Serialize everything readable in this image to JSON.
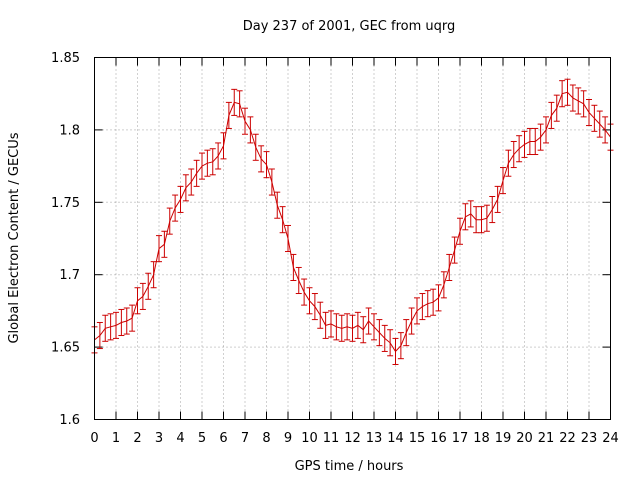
{
  "chart_data": {
    "type": "line",
    "title": "Day 237 of 2001, GEC from uqrg",
    "xlabel": "GPS time / hours",
    "ylabel": "Global Electron Content / GECUs",
    "xlim": [
      0,
      24
    ],
    "ylim": [
      1.6,
      1.85
    ],
    "x_ticks": [
      "0",
      "1",
      "2",
      "3",
      "4",
      "5",
      "6",
      "7",
      "8",
      "9",
      "10",
      "11",
      "12",
      "13",
      "14",
      "15",
      "16",
      "17",
      "18",
      "19",
      "20",
      "21",
      "22",
      "23",
      "24"
    ],
    "y_ticks": [
      "1.6",
      "1.65",
      "1.7",
      "1.75",
      "1.8",
      "1.85"
    ],
    "grid": true,
    "series": [
      {
        "color": "#cc0000",
        "marker": "errorbar",
        "x": [
          0,
          0.25,
          0.5,
          0.75,
          1,
          1.25,
          1.5,
          1.75,
          2,
          2.25,
          2.5,
          2.75,
          3,
          3.25,
          3.5,
          3.75,
          4,
          4.25,
          4.5,
          4.75,
          5,
          5.25,
          5.5,
          5.75,
          6,
          6.25,
          6.5,
          6.75,
          7,
          7.25,
          7.5,
          7.75,
          8,
          8.25,
          8.5,
          8.75,
          9,
          9.25,
          9.5,
          9.75,
          10,
          10.25,
          10.5,
          10.75,
          11,
          11.25,
          11.5,
          11.75,
          12,
          12.25,
          12.5,
          12.75,
          13,
          13.25,
          13.5,
          13.75,
          14,
          14.25,
          14.5,
          14.75,
          15,
          15.25,
          15.5,
          15.75,
          16,
          16.25,
          16.5,
          16.75,
          17,
          17.25,
          17.5,
          17.75,
          18,
          18.25,
          18.5,
          18.75,
          19,
          19.25,
          19.5,
          19.75,
          20,
          20.25,
          20.5,
          20.75,
          21,
          21.25,
          21.5,
          21.75,
          22,
          22.25,
          22.5,
          22.75,
          23,
          23.25,
          23.5,
          23.75,
          24
        ],
        "y": [
          1.655,
          1.658,
          1.663,
          1.664,
          1.665,
          1.667,
          1.668,
          1.67,
          1.682,
          1.685,
          1.692,
          1.7,
          1.718,
          1.721,
          1.737,
          1.746,
          1.752,
          1.76,
          1.764,
          1.77,
          1.775,
          1.777,
          1.778,
          1.782,
          1.789,
          1.81,
          1.819,
          1.818,
          1.806,
          1.8,
          1.788,
          1.78,
          1.776,
          1.764,
          1.748,
          1.738,
          1.725,
          1.705,
          1.696,
          1.688,
          1.682,
          1.678,
          1.672,
          1.665,
          1.666,
          1.664,
          1.663,
          1.664,
          1.663,
          1.665,
          1.662,
          1.668,
          1.664,
          1.66,
          1.656,
          1.653,
          1.647,
          1.651,
          1.66,
          1.668,
          1.675,
          1.678,
          1.68,
          1.681,
          1.684,
          1.693,
          1.705,
          1.717,
          1.73,
          1.74,
          1.742,
          1.738,
          1.738,
          1.739,
          1.745,
          1.752,
          1.765,
          1.777,
          1.783,
          1.787,
          1.79,
          1.792,
          1.792,
          1.795,
          1.8,
          1.81,
          1.815,
          1.825,
          1.826,
          1.822,
          1.82,
          1.818,
          1.812,
          1.808,
          1.804,
          1.8,
          1.795
        ],
        "err": 0.009
      }
    ]
  }
}
